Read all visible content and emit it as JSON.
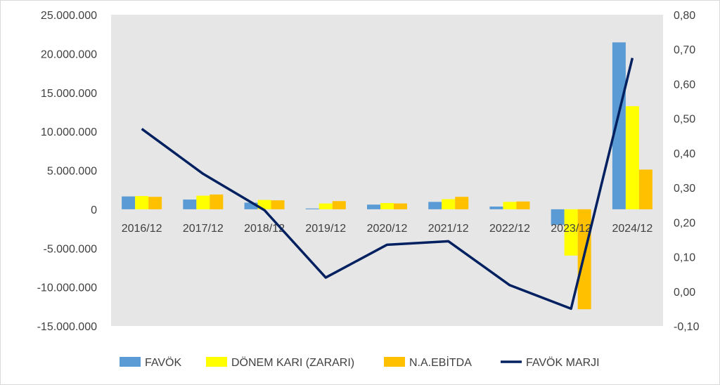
{
  "chart_data": {
    "type": "bar",
    "categories": [
      "2016/12",
      "2017/12",
      "2018/12",
      "2019/12",
      "2020/12",
      "2021/12",
      "2022/12",
      "2023/12",
      "2024/12"
    ],
    "series": [
      {
        "name": "FAVÖK",
        "type": "bar",
        "axis": "left",
        "color": "#5b9bd5",
        "values": [
          1650000,
          1250000,
          850000,
          100000,
          600000,
          950000,
          350000,
          -2000000,
          21450000
        ]
      },
      {
        "name": "DÖNEM KARI (ZARARI)",
        "type": "bar",
        "axis": "left",
        "color": "#ffff00",
        "values": [
          1700000,
          1750000,
          1200000,
          750000,
          800000,
          1300000,
          950000,
          -5950000,
          13250000
        ]
      },
      {
        "name": "N.A.EBİTDA",
        "type": "bar",
        "axis": "left",
        "color": "#ffc000",
        "values": [
          1600000,
          1900000,
          1150000,
          1050000,
          750000,
          1600000,
          1000000,
          -12850000,
          5100000
        ]
      },
      {
        "name": "FAVÖK MARJI",
        "type": "line",
        "axis": "right",
        "color": "#002060",
        "values": [
          0.47,
          0.34,
          0.235,
          0.04,
          0.135,
          0.145,
          0.018,
          -0.05,
          0.675
        ]
      }
    ],
    "y_left": {
      "min": -15000000,
      "max": 25000000,
      "ticks": [
        -15000000,
        -10000000,
        -5000000,
        0,
        5000000,
        10000000,
        15000000,
        20000000,
        25000000
      ],
      "tick_labels": [
        "-15.000.000",
        "-10.000.000",
        "-5.000.000",
        "0",
        "5.000.000",
        "10.000.000",
        "15.000.000",
        "20.000.000",
        "25.000.000"
      ]
    },
    "y_right": {
      "min": -0.1,
      "max": 0.8,
      "ticks": [
        -0.1,
        0.0,
        0.1,
        0.2,
        0.3,
        0.4,
        0.5,
        0.6,
        0.7,
        0.8
      ],
      "tick_labels": [
        "-0,10",
        "0,00",
        "0,10",
        "0,20",
        "0,30",
        "0,40",
        "0,50",
        "0,60",
        "0,70",
        "0,80"
      ]
    },
    "grid": false,
    "plot_background": "#e7e6e6",
    "legend_position": "bottom"
  }
}
